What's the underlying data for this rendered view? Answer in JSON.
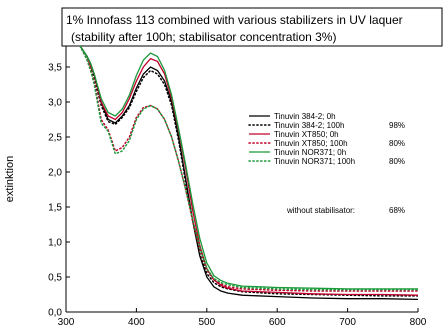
{
  "chart_data": {
    "type": "line",
    "title_lines": [
      "1% Innofass 113 combined with various stabilizers in UV laquer",
      "(stability after 100h; stabilisator concentration 3%)"
    ],
    "xlabel": "",
    "ylabel": "extinktion",
    "xlim": [
      300,
      800
    ],
    "ylim": [
      0.0,
      3.8
    ],
    "x_ticks": [
      300,
      400,
      500,
      600,
      700,
      800
    ],
    "x_tick_labels": [
      "300",
      "400",
      "500",
      "600",
      "700",
      "800"
    ],
    "y_ticks": [
      0.0,
      0.5,
      1.0,
      1.5,
      2.0,
      2.5,
      3.0,
      3.5
    ],
    "y_tick_labels": [
      "0,0",
      "0,5",
      "1,0",
      "1,5",
      "2,0",
      "2,5",
      "3,0",
      "3,5"
    ],
    "grid": false,
    "legend_position": "right",
    "series": [
      {
        "name": "Tinuvin 384-2; 0h",
        "color": "#000000",
        "dash": "solid",
        "percent": "",
        "x": [
          317,
          320,
          330,
          335,
          340,
          350,
          360,
          370,
          380,
          390,
          400,
          410,
          420,
          430,
          440,
          450,
          460,
          470,
          480,
          490,
          500,
          510,
          520,
          530,
          550,
          600,
          650,
          700,
          750,
          800
        ],
        "y": [
          3.85,
          3.8,
          3.65,
          3.55,
          3.4,
          3.0,
          2.75,
          2.7,
          2.8,
          2.95,
          3.2,
          3.4,
          3.5,
          3.45,
          3.3,
          3.0,
          2.5,
          1.9,
          1.3,
          0.8,
          0.5,
          0.36,
          0.3,
          0.27,
          0.24,
          0.22,
          0.2,
          0.19,
          0.19,
          0.18
        ]
      },
      {
        "name": "Tinuvin 384-2; 100h",
        "color": "#000000",
        "dash": "dotted",
        "percent": "98%",
        "x": [
          317,
          320,
          330,
          335,
          340,
          350,
          360,
          370,
          380,
          390,
          400,
          410,
          420,
          430,
          440,
          450,
          460,
          470,
          480,
          490,
          500,
          510,
          520,
          530,
          550,
          600,
          650,
          700,
          750,
          800
        ],
        "y": [
          3.85,
          3.8,
          3.65,
          3.5,
          3.35,
          2.95,
          2.72,
          2.68,
          2.78,
          2.92,
          3.15,
          3.35,
          3.45,
          3.4,
          3.25,
          2.95,
          2.45,
          1.85,
          1.3,
          0.82,
          0.55,
          0.42,
          0.36,
          0.33,
          0.29,
          0.26,
          0.25,
          0.24,
          0.23,
          0.23
        ]
      },
      {
        "name": "Tinuvin XT850; 0h",
        "color": "#c0002a",
        "dash": "solid",
        "percent": "",
        "x": [
          317,
          320,
          330,
          335,
          340,
          350,
          360,
          370,
          380,
          390,
          400,
          410,
          420,
          430,
          440,
          450,
          460,
          470,
          480,
          490,
          500,
          510,
          520,
          530,
          550,
          600,
          650,
          700,
          750,
          800
        ],
        "y": [
          3.85,
          3.8,
          3.65,
          3.5,
          3.4,
          3.0,
          2.8,
          2.75,
          2.85,
          3.05,
          3.3,
          3.5,
          3.62,
          3.58,
          3.4,
          3.05,
          2.6,
          2.05,
          1.45,
          0.95,
          0.62,
          0.46,
          0.38,
          0.34,
          0.3,
          0.28,
          0.26,
          0.25,
          0.25,
          0.24
        ]
      },
      {
        "name": "Tinuvin XT850; 100h",
        "color": "#c0002a",
        "dash": "dotted",
        "percent": "80%",
        "x": [
          317,
          320,
          330,
          335,
          340,
          350,
          360,
          370,
          380,
          390,
          400,
          410,
          420,
          430,
          440,
          450,
          460,
          470,
          480,
          490,
          500,
          510,
          520,
          530,
          550,
          600,
          650,
          700,
          750,
          800
        ],
        "y": [
          3.85,
          3.8,
          3.6,
          3.45,
          3.3,
          2.75,
          2.6,
          2.3,
          2.35,
          2.5,
          2.78,
          2.92,
          2.95,
          2.9,
          2.75,
          2.5,
          2.15,
          1.75,
          1.3,
          0.9,
          0.6,
          0.46,
          0.4,
          0.36,
          0.33,
          0.31,
          0.3,
          0.3,
          0.3,
          0.3
        ]
      },
      {
        "name": "Tinuvin NOR371; 0h",
        "color": "#1a9a3a",
        "dash": "solid",
        "percent": "",
        "x": [
          317,
          320,
          330,
          335,
          340,
          350,
          360,
          370,
          380,
          390,
          400,
          410,
          420,
          430,
          440,
          450,
          460,
          470,
          480,
          490,
          500,
          510,
          520,
          530,
          550,
          600,
          650,
          700,
          750,
          800
        ],
        "y": [
          3.85,
          3.8,
          3.65,
          3.55,
          3.4,
          3.05,
          2.85,
          2.8,
          2.9,
          3.1,
          3.38,
          3.6,
          3.7,
          3.65,
          3.45,
          3.1,
          2.62,
          2.1,
          1.55,
          1.05,
          0.7,
          0.52,
          0.45,
          0.41,
          0.37,
          0.35,
          0.34,
          0.33,
          0.33,
          0.33
        ]
      },
      {
        "name": "Tinuvin NOR371; 100h",
        "color": "#1a9a3a",
        "dash": "dotted",
        "percent": "80%",
        "x": [
          317,
          320,
          330,
          335,
          340,
          350,
          360,
          370,
          380,
          390,
          400,
          410,
          420,
          430,
          440,
          450,
          460,
          470,
          480,
          490,
          500,
          510,
          520,
          530,
          550,
          600,
          650,
          700,
          750,
          800
        ],
        "y": [
          3.85,
          3.8,
          3.6,
          3.45,
          3.25,
          2.7,
          2.58,
          2.26,
          2.3,
          2.45,
          2.75,
          2.9,
          2.95,
          2.9,
          2.75,
          2.5,
          2.15,
          1.75,
          1.32,
          0.92,
          0.62,
          0.48,
          0.42,
          0.39,
          0.35,
          0.33,
          0.32,
          0.32,
          0.32,
          0.32
        ]
      }
    ],
    "annotation": {
      "label": "without stabilisator:",
      "value": "68%"
    }
  }
}
